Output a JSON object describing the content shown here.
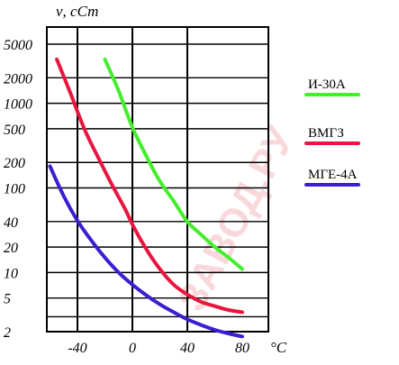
{
  "watermark": "ЗАВОД.РУ",
  "chart_data": {
    "type": "line",
    "xlabel": "°C",
    "ylabel": "ν, сСт",
    "x_ticks": [
      "-40",
      "0",
      "40",
      "80"
    ],
    "y_ticks": [
      "5000",
      "2000",
      "1000",
      "500",
      "200",
      "100",
      "40",
      "20",
      "10",
      "5",
      "2"
    ],
    "xlim": [
      -60,
      100
    ],
    "ylim": [
      2,
      10000
    ],
    "y_scale": "log",
    "grid": true,
    "legend_position": "right",
    "series": [
      {
        "name": "И-30А",
        "color": "#44ee2c",
        "x": [
          -20,
          -10,
          0,
          10,
          20,
          30,
          40,
          50,
          60,
          70,
          80
        ],
        "y": [
          3300,
          1400,
          520,
          240,
          120,
          70,
          40,
          28,
          20,
          15,
          11
        ]
      },
      {
        "name": "ВМГЗ",
        "color": "#e8163f",
        "x": [
          -55,
          -45,
          -35,
          -25,
          -15,
          -5,
          0,
          10,
          20,
          30,
          40,
          50,
          60,
          70,
          80
        ],
        "y": [
          3300,
          1300,
          500,
          230,
          110,
          55,
          37,
          19,
          11,
          7.2,
          5.5,
          4.5,
          4.0,
          3.6,
          3.4
        ]
      },
      {
        "name": "МГЕ-4А",
        "color": "#3a1fd0",
        "x": [
          -60,
          -50,
          -40,
          -30,
          -20,
          -10,
          0,
          10,
          20,
          30,
          40,
          50,
          60,
          70,
          80
        ],
        "y": [
          180,
          80,
          41,
          24,
          15,
          10,
          7.2,
          5.4,
          4.2,
          3.4,
          2.8,
          2.4,
          2.1,
          1.9,
          1.75
        ]
      }
    ]
  }
}
